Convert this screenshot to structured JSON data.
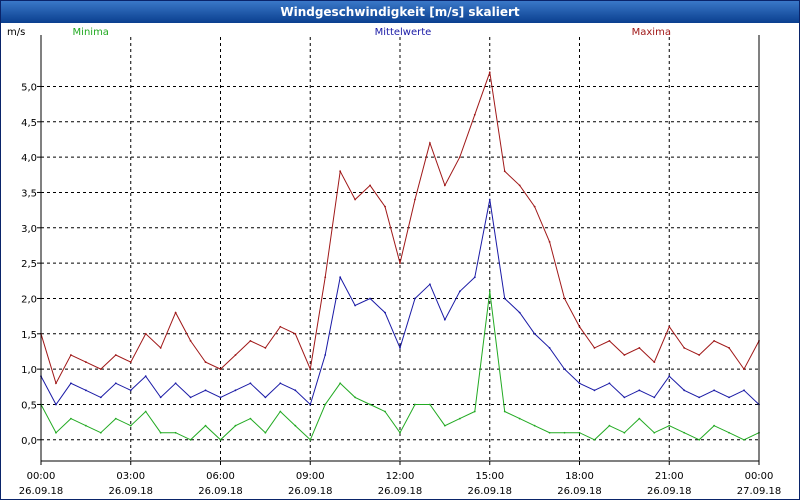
{
  "window": {
    "title": "Windgeschwindigkeit [m/s] skaliert"
  },
  "chart_data": {
    "type": "line",
    "title": "Windgeschwindigkeit [m/s] skaliert",
    "ylabel": "m/s",
    "xlabel": "",
    "ylim": [
      -0.3,
      5.7
    ],
    "grid": true,
    "yticks": [
      0.0,
      0.5,
      1.0,
      1.5,
      2.0,
      2.5,
      3.0,
      3.5,
      4.0,
      4.5,
      5.0
    ],
    "ytick_labels": [
      "0,0",
      "0,5",
      "1,0",
      "1,5",
      "2,0",
      "2,5",
      "3,0",
      "3,5",
      "4,0",
      "4,5",
      "5,0"
    ],
    "xlim_hours": [
      0,
      24
    ],
    "xticks": [
      {
        "hour": 0,
        "time": "00:00",
        "date": "26.09.18"
      },
      {
        "hour": 3,
        "time": "03:00",
        "date": "26.09.18"
      },
      {
        "hour": 6,
        "time": "06:00",
        "date": "26.09.18"
      },
      {
        "hour": 9,
        "time": "09:00",
        "date": "26.09.18"
      },
      {
        "hour": 12,
        "time": "12:00",
        "date": "26.09.18"
      },
      {
        "hour": 15,
        "time": "15:00",
        "date": "26.09.18"
      },
      {
        "hour": 18,
        "time": "18:00",
        "date": "26.09.18"
      },
      {
        "hour": 21,
        "time": "21:00",
        "date": "26.09.18"
      },
      {
        "hour": 24,
        "time": "00:00",
        "date": "27.09.18"
      }
    ],
    "legend": [
      {
        "name": "Minima",
        "color": "#22aa22"
      },
      {
        "name": "Mittelwerte",
        "color": "#1a1aa6"
      },
      {
        "name": "Maxima",
        "color": "#a01818"
      }
    ],
    "x_hours": [
      0,
      0.5,
      1,
      1.5,
      2,
      2.5,
      3,
      3.5,
      4,
      4.5,
      5,
      5.5,
      6,
      6.5,
      7,
      7.5,
      8,
      8.5,
      9,
      9.5,
      10,
      10.5,
      11,
      11.5,
      12,
      12.5,
      13,
      13.5,
      14,
      14.5,
      15,
      15.5,
      16,
      16.5,
      17,
      17.5,
      18,
      18.5,
      19,
      19.5,
      20,
      20.5,
      21,
      21.5,
      22,
      22.5,
      23,
      23.5,
      24
    ],
    "series": [
      {
        "name": "Maxima",
        "color": "#a01818",
        "values": [
          1.5,
          0.8,
          1.2,
          1.1,
          1.0,
          1.2,
          1.1,
          1.5,
          1.3,
          1.8,
          1.4,
          1.1,
          1.0,
          1.2,
          1.4,
          1.3,
          1.6,
          1.5,
          1.0,
          2.3,
          3.8,
          3.4,
          3.6,
          3.3,
          2.5,
          3.4,
          4.2,
          3.6,
          4.0,
          4.6,
          5.2,
          3.8,
          3.6,
          3.3,
          2.8,
          2.0,
          1.6,
          1.3,
          1.4,
          1.2,
          1.3,
          1.1,
          1.6,
          1.3,
          1.2,
          1.4,
          1.3,
          1.0,
          1.4
        ]
      },
      {
        "name": "Mittelwerte",
        "color": "#1a1aa6",
        "values": [
          0.9,
          0.5,
          0.8,
          0.7,
          0.6,
          0.8,
          0.7,
          0.9,
          0.6,
          0.8,
          0.6,
          0.7,
          0.6,
          0.7,
          0.8,
          0.6,
          0.8,
          0.7,
          0.5,
          1.2,
          2.3,
          1.9,
          2.0,
          1.8,
          1.3,
          2.0,
          2.2,
          1.7,
          2.1,
          2.3,
          3.4,
          2.0,
          1.8,
          1.5,
          1.3,
          1.0,
          0.8,
          0.7,
          0.8,
          0.6,
          0.7,
          0.6,
          0.9,
          0.7,
          0.6,
          0.7,
          0.6,
          0.7,
          0.5
        ]
      },
      {
        "name": "Minima",
        "color": "#22aa22",
        "values": [
          0.5,
          0.1,
          0.3,
          0.2,
          0.1,
          0.3,
          0.2,
          0.4,
          0.1,
          0.1,
          0.0,
          0.2,
          0.0,
          0.2,
          0.3,
          0.1,
          0.4,
          0.2,
          0.0,
          0.5,
          0.8,
          0.6,
          0.5,
          0.4,
          0.1,
          0.5,
          0.5,
          0.2,
          0.3,
          0.4,
          2.1,
          0.4,
          0.3,
          0.2,
          0.1,
          0.1,
          0.1,
          0.0,
          0.2,
          0.1,
          0.3,
          0.1,
          0.2,
          0.1,
          0.0,
          0.2,
          0.1,
          0.0,
          0.1
        ]
      }
    ]
  }
}
